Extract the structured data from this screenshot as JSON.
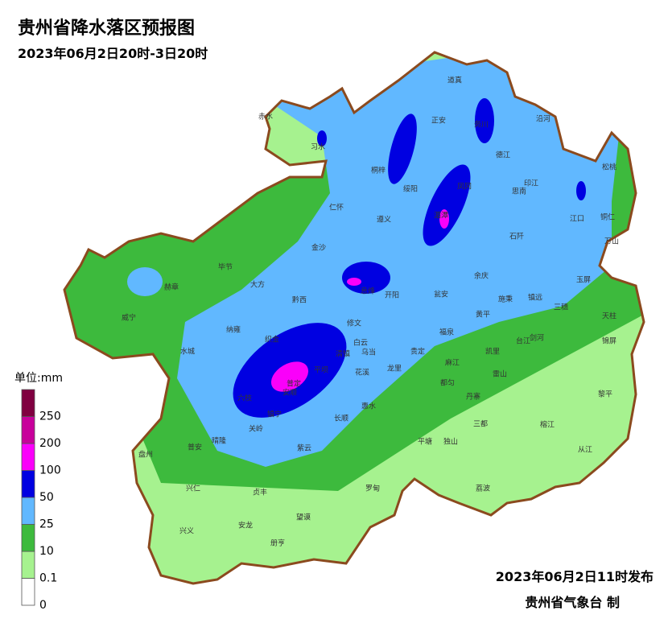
{
  "header": {
    "title": "贵州省降水落区预报图",
    "subtitle": "2023年06月2日20时-3日20时"
  },
  "legend": {
    "unit": "单位:mm",
    "breaks": [
      0,
      0.1,
      10,
      25,
      50,
      100,
      200,
      250
    ],
    "colors": [
      "#ffffff",
      "#a6f28f",
      "#3dba3d",
      "#61b8ff",
      "#0000e1",
      "#fa00fa",
      "#c8009b",
      "#800040"
    ]
  },
  "places": [
    "赤水",
    "习水",
    "道真",
    "正安",
    "务川",
    "沿河",
    "桐梓",
    "绥阳",
    "凤冈",
    "德江",
    "印江",
    "松桃",
    "思南",
    "仁怀",
    "遵义",
    "湄潭",
    "石阡",
    "江口",
    "铜仁",
    "万山",
    "金沙",
    "毕节",
    "大方",
    "赫章",
    "黔西",
    "息烽",
    "开阳",
    "余庆",
    "施秉",
    "镇远",
    "玉屏",
    "瓮安",
    "黄平",
    "三穗",
    "天柱",
    "威宁",
    "纳雍",
    "修文",
    "锦屏",
    "织金",
    "白云",
    "清镇",
    "乌当",
    "福泉",
    "台江",
    "剑河",
    "凯里",
    "贵定",
    "麻江",
    "水城",
    "普定",
    "平坝",
    "花溪",
    "龙里",
    "雷山",
    "六枝",
    "安顺",
    "都匀",
    "丹寨",
    "黎平",
    "惠水",
    "镇宁",
    "长顺",
    "三都",
    "榕江",
    "关岭",
    "紫云",
    "平塘",
    "独山",
    "晴隆",
    "普安",
    "盘州",
    "从江",
    "荔波",
    "兴仁",
    "贞丰",
    "罗甸",
    "望谟",
    "兴义",
    "安龙",
    "册亨"
  ],
  "footer": {
    "issued": "2023年06月2日11时发布",
    "agency": "贵州省气象台 制"
  }
}
